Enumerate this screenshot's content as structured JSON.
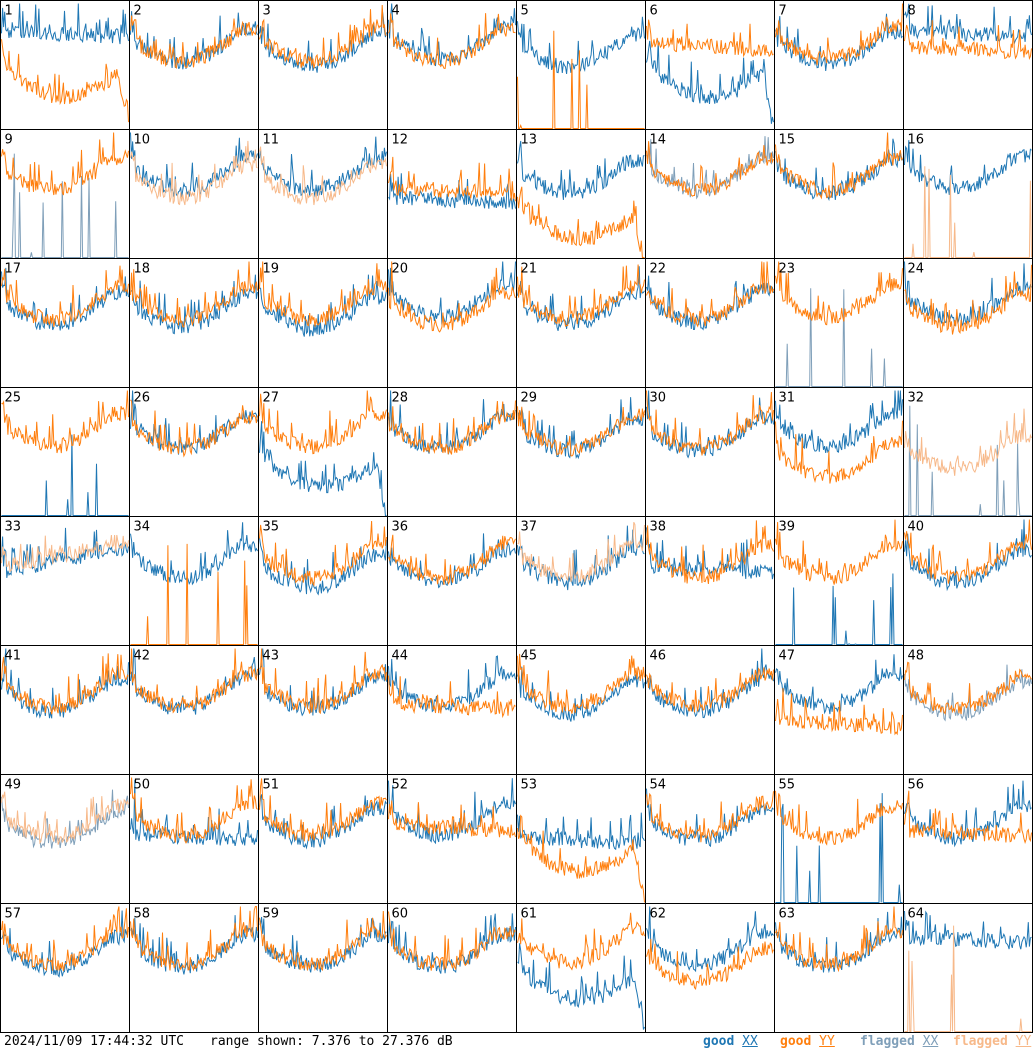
{
  "footer": {
    "timestamp": "2024/11/09 17:44:32 UTC",
    "range": "range shown: 7.376 to 27.376 dB"
  },
  "legend": [
    {
      "label": "good",
      "pol": "XX",
      "color": "#1f77b4"
    },
    {
      "label": "good",
      "pol": "YY",
      "color": "#ff7f0e"
    },
    {
      "label": "flagged",
      "pol": "XX",
      "color": "#7f9fb9"
    },
    {
      "label": "flagged",
      "pol": "YY",
      "color": "#f7b98a"
    }
  ],
  "colors": {
    "good_xx": "#1f77b4",
    "good_yy": "#ff7f0e",
    "flagged_xx": "#7f9fb9",
    "flagged_yy": "#f7b98a"
  },
  "chart_data": {
    "type": "line",
    "grid": {
      "rows": 8,
      "cols": 8
    },
    "ylim": [
      7.376,
      27.376
    ],
    "y_unit": "dB",
    "panels": [
      {
        "id": "1",
        "xx": {
          "status": "good",
          "shape": "flat",
          "level": 0.78
        },
        "yy": {
          "status": "good",
          "shape": "hump",
          "level": 0.5
        }
      },
      {
        "id": "2",
        "xx": {
          "status": "good",
          "shape": "bowl",
          "level": 0.72
        },
        "yy": {
          "status": "good",
          "shape": "bowl",
          "level": 0.72
        }
      },
      {
        "id": "3",
        "xx": {
          "status": "good",
          "shape": "bowl",
          "level": 0.68
        },
        "yy": {
          "status": "good",
          "shape": "bowl",
          "level": 0.72
        }
      },
      {
        "id": "4",
        "xx": {
          "status": "good",
          "shape": "bowl",
          "level": 0.74
        },
        "yy": {
          "status": "good",
          "shape": "bowl",
          "level": 0.72
        }
      },
      {
        "id": "5",
        "xx": {
          "status": "good",
          "shape": "bowl",
          "level": 0.68
        },
        "yy": {
          "status": "good",
          "shape": "dead",
          "level": 0.0
        }
      },
      {
        "id": "6",
        "xx": {
          "status": "good",
          "shape": "hump",
          "level": 0.5
        },
        "yy": {
          "status": "good",
          "shape": "flat",
          "level": 0.68
        }
      },
      {
        "id": "7",
        "xx": {
          "status": "good",
          "shape": "bowl",
          "level": 0.7
        },
        "yy": {
          "status": "good",
          "shape": "bowl",
          "level": 0.74
        }
      },
      {
        "id": "8",
        "xx": {
          "status": "good",
          "shape": "flat",
          "level": 0.78
        },
        "yy": {
          "status": "good",
          "shape": "flat",
          "level": 0.66
        }
      },
      {
        "id": "9",
        "xx": {
          "status": "flagged",
          "shape": "dead",
          "level": 0.0
        },
        "yy": {
          "status": "good",
          "shape": "bowl",
          "level": 0.72
        }
      },
      {
        "id": "10",
        "xx": {
          "status": "good",
          "shape": "bowl",
          "level": 0.72
        },
        "yy": {
          "status": "flagged",
          "shape": "bowl",
          "level": 0.66
        }
      },
      {
        "id": "11",
        "xx": {
          "status": "good",
          "shape": "bowl",
          "level": 0.72
        },
        "yy": {
          "status": "flagged",
          "shape": "bowl",
          "level": 0.66
        }
      },
      {
        "id": "12",
        "xx": {
          "status": "good",
          "shape": "flat",
          "level": 0.48
        },
        "yy": {
          "status": "good",
          "shape": "flat",
          "level": 0.56
        }
      },
      {
        "id": "13",
        "xx": {
          "status": "good",
          "shape": "bowl",
          "level": 0.7
        },
        "yy": {
          "status": "good",
          "shape": "hump",
          "level": 0.4
        }
      },
      {
        "id": "14",
        "xx": {
          "status": "flagged",
          "shape": "bowl",
          "level": 0.72
        },
        "yy": {
          "status": "good",
          "shape": "bowl",
          "level": 0.72
        }
      },
      {
        "id": "15",
        "xx": {
          "status": "good",
          "shape": "bowl",
          "level": 0.7
        },
        "yy": {
          "status": "good",
          "shape": "bowl",
          "level": 0.72
        }
      },
      {
        "id": "16",
        "xx": {
          "status": "good",
          "shape": "bowl",
          "level": 0.74
        },
        "yy": {
          "status": "flagged",
          "shape": "dead",
          "level": 0.0
        }
      },
      {
        "id": "17",
        "xx": {
          "status": "good",
          "shape": "bowl",
          "level": 0.68
        },
        "yy": {
          "status": "good",
          "shape": "bowl",
          "level": 0.72
        }
      },
      {
        "id": "18",
        "xx": {
          "status": "good",
          "shape": "bowl",
          "level": 0.66
        },
        "yy": {
          "status": "good",
          "shape": "bowl",
          "level": 0.72
        }
      },
      {
        "id": "19",
        "xx": {
          "status": "good",
          "shape": "bowl",
          "level": 0.64
        },
        "yy": {
          "status": "good",
          "shape": "bowl",
          "level": 0.72
        }
      },
      {
        "id": "20",
        "xx": {
          "status": "good",
          "shape": "bowl",
          "level": 0.74
        },
        "yy": {
          "status": "good",
          "shape": "bowl",
          "level": 0.68
        }
      },
      {
        "id": "21",
        "xx": {
          "status": "good",
          "shape": "bowl",
          "level": 0.68
        },
        "yy": {
          "status": "good",
          "shape": "bowl",
          "level": 0.72
        }
      },
      {
        "id": "22",
        "xx": {
          "status": "good",
          "shape": "bowl",
          "level": 0.7
        },
        "yy": {
          "status": "good",
          "shape": "bowl",
          "level": 0.72
        }
      },
      {
        "id": "23",
        "xx": {
          "status": "flagged",
          "shape": "dead",
          "level": 0.3
        },
        "yy": {
          "status": "good",
          "shape": "bowl",
          "level": 0.74
        }
      },
      {
        "id": "24",
        "xx": {
          "status": "good",
          "shape": "bowl",
          "level": 0.72
        },
        "yy": {
          "status": "good",
          "shape": "bowl",
          "level": 0.66
        }
      },
      {
        "id": "25",
        "xx": {
          "status": "good",
          "shape": "dead",
          "level": 0.0
        },
        "yy": {
          "status": "good",
          "shape": "bowl",
          "level": 0.74
        }
      },
      {
        "id": "26",
        "xx": {
          "status": "good",
          "shape": "bowl",
          "level": 0.72
        },
        "yy": {
          "status": "good",
          "shape": "bowl",
          "level": 0.72
        }
      },
      {
        "id": "27",
        "xx": {
          "status": "good",
          "shape": "hump",
          "level": 0.48
        },
        "yy": {
          "status": "good",
          "shape": "bowl",
          "level": 0.74
        }
      },
      {
        "id": "28",
        "xx": {
          "status": "good",
          "shape": "bowl",
          "level": 0.72
        },
        "yy": {
          "status": "good",
          "shape": "bowl",
          "level": 0.72
        }
      },
      {
        "id": "29",
        "xx": {
          "status": "good",
          "shape": "bowl",
          "level": 0.7
        },
        "yy": {
          "status": "good",
          "shape": "bowl",
          "level": 0.72
        }
      },
      {
        "id": "30",
        "xx": {
          "status": "good",
          "shape": "bowl",
          "level": 0.7
        },
        "yy": {
          "status": "good",
          "shape": "bowl",
          "level": 0.72
        }
      },
      {
        "id": "31",
        "xx": {
          "status": "good",
          "shape": "bowl",
          "level": 0.74
        },
        "yy": {
          "status": "good",
          "shape": "bowl",
          "level": 0.5
        }
      },
      {
        "id": "32",
        "xx": {
          "status": "flagged",
          "shape": "dead",
          "level": 0.0
        },
        "yy": {
          "status": "flagged",
          "shape": "bowl",
          "level": 0.56
        }
      },
      {
        "id": "33",
        "xx": {
          "status": "good",
          "shape": "rise",
          "level": 0.68
        },
        "yy": {
          "status": "flagged",
          "shape": "rise",
          "level": 0.72
        }
      },
      {
        "id": "34",
        "xx": {
          "status": "good",
          "shape": "bowl",
          "level": 0.72
        },
        "yy": {
          "status": "good",
          "shape": "dead",
          "level": 0.0
        }
      },
      {
        "id": "35",
        "xx": {
          "status": "good",
          "shape": "bowl",
          "level": 0.64
        },
        "yy": {
          "status": "good",
          "shape": "bowl",
          "level": 0.72
        }
      },
      {
        "id": "36",
        "xx": {
          "status": "good",
          "shape": "bowl",
          "level": 0.68
        },
        "yy": {
          "status": "good",
          "shape": "bowl",
          "level": 0.72
        }
      },
      {
        "id": "37",
        "xx": {
          "status": "good",
          "shape": "bowl",
          "level": 0.68
        },
        "yy": {
          "status": "flagged",
          "shape": "bowl",
          "level": 0.72
        }
      },
      {
        "id": "38",
        "xx": {
          "status": "good",
          "shape": "flat",
          "level": 0.62
        },
        "yy": {
          "status": "good",
          "shape": "bowl",
          "level": 0.72
        }
      },
      {
        "id": "39",
        "xx": {
          "status": "good",
          "shape": "dead",
          "level": 0.0
        },
        "yy": {
          "status": "good",
          "shape": "bowl",
          "level": 0.72
        }
      },
      {
        "id": "40",
        "xx": {
          "status": "good",
          "shape": "bowl",
          "level": 0.68
        },
        "yy": {
          "status": "good",
          "shape": "bowl",
          "level": 0.72
        }
      },
      {
        "id": "41",
        "xx": {
          "status": "good",
          "shape": "bowl",
          "level": 0.68
        },
        "yy": {
          "status": "good",
          "shape": "bowl",
          "level": 0.72
        }
      },
      {
        "id": "42",
        "xx": {
          "status": "good",
          "shape": "bowl",
          "level": 0.7
        },
        "yy": {
          "status": "good",
          "shape": "bowl",
          "level": 0.72
        }
      },
      {
        "id": "43",
        "xx": {
          "status": "good",
          "shape": "bowl",
          "level": 0.7
        },
        "yy": {
          "status": "good",
          "shape": "bowl",
          "level": 0.72
        }
      },
      {
        "id": "44",
        "xx": {
          "status": "good",
          "shape": "bowl",
          "level": 0.72
        },
        "yy": {
          "status": "good",
          "shape": "flat",
          "level": 0.56
        }
      },
      {
        "id": "45",
        "xx": {
          "status": "good",
          "shape": "bowl",
          "level": 0.66
        },
        "yy": {
          "status": "good",
          "shape": "bowl",
          "level": 0.72
        }
      },
      {
        "id": "46",
        "xx": {
          "status": "good",
          "shape": "bowl",
          "level": 0.68
        },
        "yy": {
          "status": "good",
          "shape": "bowl",
          "level": 0.72
        }
      },
      {
        "id": "47",
        "xx": {
          "status": "good",
          "shape": "bowl",
          "level": 0.72
        },
        "yy": {
          "status": "good",
          "shape": "flat",
          "level": 0.42
        }
      },
      {
        "id": "48",
        "xx": {
          "status": "flagged",
          "shape": "bowl",
          "level": 0.66
        },
        "yy": {
          "status": "good",
          "shape": "bowl",
          "level": 0.7
        }
      },
      {
        "id": "49",
        "xx": {
          "status": "flagged",
          "shape": "bowl",
          "level": 0.66
        },
        "yy": {
          "status": "flagged",
          "shape": "bowl",
          "level": 0.7
        }
      },
      {
        "id": "50",
        "xx": {
          "status": "good",
          "shape": "flat",
          "level": 0.55
        },
        "yy": {
          "status": "good",
          "shape": "bowl",
          "level": 0.72
        }
      },
      {
        "id": "51",
        "xx": {
          "status": "good",
          "shape": "bowl",
          "level": 0.68
        },
        "yy": {
          "status": "good",
          "shape": "bowl",
          "level": 0.72
        }
      },
      {
        "id": "52",
        "xx": {
          "status": "good",
          "shape": "bowl",
          "level": 0.72
        },
        "yy": {
          "status": "good",
          "shape": "flat",
          "level": 0.62
        }
      },
      {
        "id": "53",
        "xx": {
          "status": "good",
          "shape": "flat",
          "level": 0.52
        },
        "yy": {
          "status": "good",
          "shape": "hump",
          "level": 0.5
        }
      },
      {
        "id": "54",
        "xx": {
          "status": "good",
          "shape": "bowl",
          "level": 0.68
        },
        "yy": {
          "status": "good",
          "shape": "bowl",
          "level": 0.72
        }
      },
      {
        "id": "55",
        "xx": {
          "status": "good",
          "shape": "dead",
          "level": 0.0
        },
        "yy": {
          "status": "good",
          "shape": "bowl",
          "level": 0.7
        }
      },
      {
        "id": "56",
        "xx": {
          "status": "good",
          "shape": "bowl",
          "level": 0.7
        },
        "yy": {
          "status": "good",
          "shape": "flat",
          "level": 0.58
        }
      },
      {
        "id": "57",
        "xx": {
          "status": "good",
          "shape": "bowl",
          "level": 0.68
        },
        "yy": {
          "status": "good",
          "shape": "bowl",
          "level": 0.72
        }
      },
      {
        "id": "58",
        "xx": {
          "status": "good",
          "shape": "bowl",
          "level": 0.7
        },
        "yy": {
          "status": "good",
          "shape": "bowl",
          "level": 0.72
        }
      },
      {
        "id": "59",
        "xx": {
          "status": "good",
          "shape": "bowl",
          "level": 0.7
        },
        "yy": {
          "status": "good",
          "shape": "bowl",
          "level": 0.72
        }
      },
      {
        "id": "60",
        "xx": {
          "status": "good",
          "shape": "bowl",
          "level": 0.7
        },
        "yy": {
          "status": "good",
          "shape": "bowl",
          "level": 0.72
        }
      },
      {
        "id": "61",
        "xx": {
          "status": "good",
          "shape": "hump",
          "level": 0.5
        },
        "yy": {
          "status": "good",
          "shape": "bowl",
          "level": 0.74
        }
      },
      {
        "id": "62",
        "xx": {
          "status": "good",
          "shape": "bowl",
          "level": 0.72
        },
        "yy": {
          "status": "good",
          "shape": "bowl",
          "level": 0.58
        }
      },
      {
        "id": "63",
        "xx": {
          "status": "good",
          "shape": "bowl",
          "level": 0.7
        },
        "yy": {
          "status": "good",
          "shape": "bowl",
          "level": 0.72
        }
      },
      {
        "id": "64",
        "xx": {
          "status": "good",
          "shape": "flat",
          "level": 0.76
        },
        "yy": {
          "status": "flagged",
          "shape": "dead",
          "level": 0.0
        }
      }
    ]
  }
}
